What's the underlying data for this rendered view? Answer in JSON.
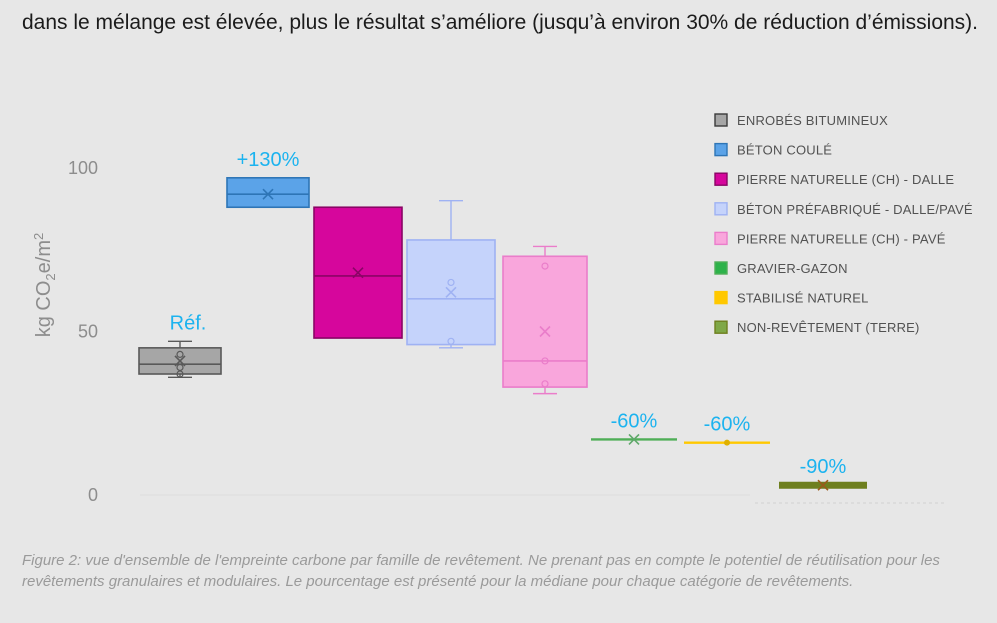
{
  "article": {
    "intro_text": "dans le mélange est élevée, plus le résultat s’améliore (jusqu’à environ 30% de réduction d’émissions).",
    "caption": "Figure 2: vue d'ensemble de l'empreinte carbone par famille de revêtement. Ne prenant pas en compte le potentiel de réutilisation pour les revêtements granulaires et modulaires. Le pourcentage est présenté pour la médiane pour chaque catégorie de revêtements."
  },
  "chart_data": {
    "type": "box",
    "ylabel_main": "kg CO",
    "ylabel_sub": "2",
    "ylabel_rest": "e/m",
    "ylabel_sup": "2",
    "ylim": [
      0,
      100
    ],
    "yticks": [
      {
        "value": 0,
        "label": "0"
      },
      {
        "value": 50,
        "label": "50"
      },
      {
        "value": 100,
        "label": "100"
      }
    ],
    "grid": false,
    "legend_position": "top-right",
    "series": [
      {
        "name": "ENROBÉS BITUMINEUX",
        "color": "#a6a6a6",
        "stroke": "#595959",
        "min": 36,
        "q1": 37,
        "median": 40,
        "q3": 45,
        "max": 47,
        "mean": 41,
        "outliers": [
          37,
          39,
          43
        ],
        "label": "Réf."
      },
      {
        "name": "BÉTON COULÉ",
        "color": "#5ba3e8",
        "stroke": "#2e75b6",
        "min": 88,
        "q1": 88,
        "median": 92,
        "q3": 97,
        "max": 97,
        "mean": 92,
        "outliers": [],
        "label": "+130%"
      },
      {
        "name": "PIERRE NATURELLE (CH) - DALLE",
        "color": "#d6069c",
        "stroke": "#8a0565",
        "min": 48,
        "q1": 48,
        "median": 67,
        "q3": 88,
        "max": 88,
        "mean": 68,
        "outliers": [],
        "label": ""
      },
      {
        "name": "BÉTON PRÉFABRIQUÉ - DALLE/PAVÉ",
        "color": "#c5d3fb",
        "stroke": "#9fb2f3",
        "min": 45,
        "q1": 46,
        "median": 60,
        "q3": 78,
        "max": 90,
        "mean": 62,
        "outliers": [
          47,
          65
        ],
        "label": ""
      },
      {
        "name": "PIERRE NATURELLE (CH) - PAVÉ",
        "color": "#f9a6dc",
        "stroke": "#ea7dca",
        "min": 31,
        "q1": 33,
        "median": 41,
        "q3": 73,
        "max": 76,
        "mean": 50,
        "outliers": [
          34,
          41,
          70
        ],
        "label": ""
      },
      {
        "name": "GRAVIER-GAZON",
        "color": "#2db24a",
        "stroke": "#4fae57",
        "min": 17,
        "q1": 17,
        "median": 17,
        "q3": 17,
        "max": 17,
        "mean": 17,
        "outliers": [],
        "label": "-60%"
      },
      {
        "name": "STABILISÉ NATUREL",
        "color": "#ffc800",
        "stroke": "#ffc800",
        "min": 16,
        "q1": 16,
        "median": 16,
        "q3": 16,
        "max": 16,
        "mean": 16,
        "outliers": [],
        "label": "-60%"
      },
      {
        "name": "NON-REVÊTEMENT (TERRE)",
        "color": "#7fa847",
        "stroke": "#6e7f1e",
        "min": 3,
        "q1": 3,
        "median": 3,
        "q3": 3,
        "max": 3,
        "mean": 3,
        "outliers": [],
        "label": "-90%"
      }
    ]
  }
}
